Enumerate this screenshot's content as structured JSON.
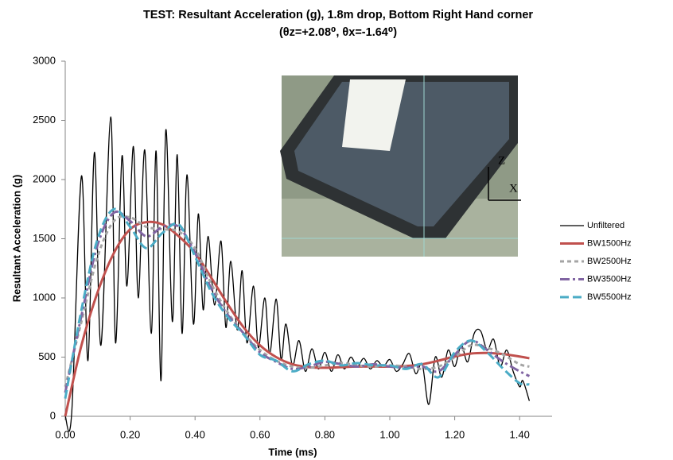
{
  "chart_data": {
    "type": "line",
    "title": "TEST:  Resultant Acceleration (g), 1.8m drop, Bottom Right Hand corner",
    "subtitle": "(θz=+2.08⁰, θx=-1.64⁰)",
    "x_label": "Time (ms)",
    "y_label": "Resultant Acceleration (g)",
    "inset_labels": [
      "Z",
      "X"
    ],
    "xlim": [
      0,
      1.5
    ],
    "ylim": [
      0,
      3000
    ],
    "xticks": [
      {
        "value": 0,
        "label": "0.00"
      },
      {
        "value": 0.2,
        "label": "0.20"
      },
      {
        "value": 0.4,
        "label": "0.40"
      },
      {
        "value": 0.6,
        "label": "0.60"
      },
      {
        "value": 0.8,
        "label": "0.80"
      },
      {
        "value": 1.0,
        "label": "1.00"
      },
      {
        "value": 1.2,
        "label": "1.20"
      },
      {
        "value": 1.4,
        "label": "1.40"
      }
    ],
    "yticks": [
      0,
      500,
      1000,
      1500,
      2000,
      2500,
      3000
    ],
    "grid": false,
    "legend": "right",
    "series": [
      {
        "name": "Unfiltered",
        "color": "#000000",
        "dash": "solid",
        "width": 1.3,
        "x": [
          0,
          0.02,
          0.05,
          0.07,
          0.09,
          0.11,
          0.14,
          0.155,
          0.175,
          0.19,
          0.21,
          0.225,
          0.245,
          0.265,
          0.28,
          0.295,
          0.31,
          0.33,
          0.345,
          0.36,
          0.375,
          0.395,
          0.41,
          0.425,
          0.44,
          0.46,
          0.48,
          0.495,
          0.51,
          0.53,
          0.545,
          0.56,
          0.58,
          0.595,
          0.615,
          0.63,
          0.65,
          0.665,
          0.68,
          0.7,
          0.72,
          0.74,
          0.76,
          0.78,
          0.8,
          0.82,
          0.84,
          0.86,
          0.88,
          0.9,
          0.92,
          0.94,
          0.96,
          0.98,
          1.0,
          1.02,
          1.04,
          1.06,
          1.08,
          1.1,
          1.12,
          1.14,
          1.16,
          1.18,
          1.2,
          1.22,
          1.24,
          1.26,
          1.28,
          1.3,
          1.32,
          1.34,
          1.36,
          1.38,
          1.4,
          1.41,
          1.43
        ],
        "values": [
          0,
          30,
          2030,
          470,
          2230,
          600,
          2530,
          620,
          2200,
          1100,
          2280,
          1000,
          2250,
          700,
          2240,
          300,
          2420,
          800,
          2210,
          700,
          2040,
          780,
          1710,
          900,
          1520,
          940,
          1480,
          750,
          1310,
          730,
          1230,
          620,
          1100,
          580,
          1000,
          530,
          990,
          480,
          780,
          430,
          640,
          380,
          570,
          400,
          540,
          380,
          520,
          400,
          500,
          420,
          490,
          400,
          470,
          420,
          480,
          380,
          440,
          530,
          360,
          440,
          100,
          500,
          330,
          560,
          420,
          600,
          460,
          700,
          720,
          560,
          650,
          420,
          560,
          380,
          250,
          300,
          130
        ]
      },
      {
        "name": "BW1500Hz",
        "color": "#c0504d",
        "dash": "solid",
        "width": 3,
        "x": [
          0,
          0.05,
          0.1,
          0.15,
          0.2,
          0.25,
          0.3,
          0.35,
          0.4,
          0.45,
          0.5,
          0.55,
          0.6,
          0.65,
          0.7,
          0.75,
          0.8,
          0.85,
          0.9,
          0.95,
          1.0,
          1.05,
          1.1,
          1.15,
          1.2,
          1.25,
          1.3,
          1.35,
          1.4,
          1.43
        ],
        "values": [
          0,
          600,
          1050,
          1380,
          1580,
          1640,
          1620,
          1520,
          1380,
          1170,
          950,
          750,
          600,
          500,
          440,
          415,
          410,
          415,
          420,
          420,
          420,
          425,
          440,
          470,
          505,
          530,
          535,
          525,
          505,
          490
        ]
      },
      {
        "name": "BW2500Hz",
        "color": "#a5a5a5",
        "dash": "short",
        "width": 3,
        "x": [
          0,
          0.05,
          0.1,
          0.15,
          0.2,
          0.25,
          0.3,
          0.35,
          0.4,
          0.45,
          0.5,
          0.55,
          0.6,
          0.65,
          0.7,
          0.75,
          0.8,
          0.85,
          0.9,
          0.95,
          1.0,
          1.05,
          1.1,
          1.15,
          1.2,
          1.25,
          1.3,
          1.35,
          1.4,
          1.43
        ],
        "values": [
          250,
          800,
          1350,
          1650,
          1680,
          1600,
          1580,
          1560,
          1420,
          1120,
          880,
          700,
          560,
          470,
          420,
          410,
          430,
          450,
          430,
          420,
          430,
          420,
          400,
          420,
          500,
          600,
          580,
          520,
          440,
          420
        ]
      },
      {
        "name": "BW3500Hz",
        "color": "#8064a2",
        "dash": "dashdot",
        "width": 3,
        "x": [
          0,
          0.05,
          0.1,
          0.15,
          0.2,
          0.25,
          0.3,
          0.35,
          0.4,
          0.45,
          0.5,
          0.55,
          0.6,
          0.65,
          0.7,
          0.75,
          0.8,
          0.85,
          0.9,
          0.95,
          1.0,
          1.05,
          1.1,
          1.15,
          1.2,
          1.25,
          1.3,
          1.35,
          1.4,
          1.43
        ],
        "values": [
          200,
          850,
          1450,
          1720,
          1650,
          1520,
          1600,
          1600,
          1380,
          1080,
          860,
          700,
          540,
          460,
          400,
          420,
          460,
          440,
          420,
          440,
          420,
          410,
          420,
          380,
          520,
          640,
          560,
          460,
          380,
          340
        ]
      },
      {
        "name": "BW5500Hz",
        "color": "#4bacc6",
        "dash": "long",
        "width": 3,
        "x": [
          0,
          0.05,
          0.1,
          0.15,
          0.2,
          0.25,
          0.3,
          0.35,
          0.4,
          0.45,
          0.5,
          0.55,
          0.6,
          0.65,
          0.7,
          0.75,
          0.8,
          0.85,
          0.9,
          0.95,
          1.0,
          1.05,
          1.1,
          1.15,
          1.2,
          1.25,
          1.3,
          1.35,
          1.4,
          1.43
        ],
        "values": [
          150,
          900,
          1500,
          1750,
          1600,
          1420,
          1550,
          1620,
          1350,
          1050,
          840,
          690,
          520,
          470,
          380,
          440,
          470,
          430,
          450,
          430,
          430,
          400,
          440,
          330,
          540,
          640,
          540,
          400,
          280,
          270
        ]
      }
    ]
  }
}
